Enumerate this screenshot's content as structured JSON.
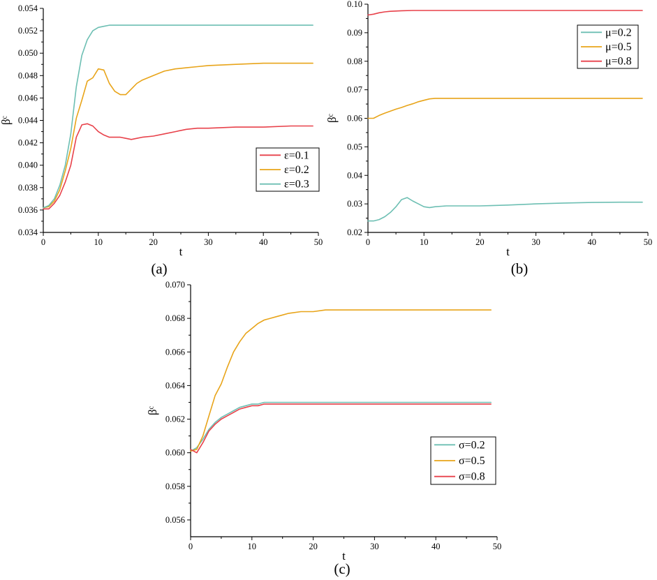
{
  "chart_data": [
    {
      "panel": "(a)",
      "type": "line",
      "xlabel": "t",
      "ylabel": "βᶜ",
      "xlim": [
        0,
        50
      ],
      "ylim": [
        0.034,
        0.054
      ],
      "xticks": [
        "0",
        "10",
        "20",
        "30",
        "40",
        "50"
      ],
      "yticks": [
        "0.034",
        "0.036",
        "0.038",
        "0.040",
        "0.042",
        "0.044",
        "0.046",
        "0.048",
        "0.050",
        "0.052",
        "0.054"
      ],
      "legend_position": "right",
      "series": [
        {
          "name": "ε=0.1",
          "color": "#e8414a",
          "x": [
            0,
            1,
            2,
            3,
            4,
            5,
            6,
            7,
            8,
            9,
            10,
            11,
            12,
            13,
            14,
            15,
            16,
            17,
            18,
            20,
            22,
            24,
            26,
            28,
            30,
            35,
            40,
            45,
            49
          ],
          "y": [
            0.0361,
            0.0361,
            0.0366,
            0.0373,
            0.0385,
            0.04,
            0.0425,
            0.0436,
            0.0437,
            0.0435,
            0.043,
            0.0427,
            0.0425,
            0.0425,
            0.0425,
            0.0424,
            0.0423,
            0.0424,
            0.0425,
            0.0426,
            0.0428,
            0.043,
            0.0432,
            0.0433,
            0.0433,
            0.0434,
            0.0434,
            0.0435,
            0.0435
          ]
        },
        {
          "name": "ε=0.2",
          "color": "#e8a419",
          "x": [
            0,
            1,
            2,
            3,
            4,
            5,
            6,
            7,
            8,
            9,
            10,
            11,
            12,
            13,
            14,
            15,
            16,
            17,
            18,
            20,
            22,
            24,
            26,
            28,
            30,
            35,
            40,
            45,
            49
          ],
          "y": [
            0.0362,
            0.0363,
            0.0368,
            0.0378,
            0.0395,
            0.0415,
            0.0442,
            0.0458,
            0.0475,
            0.0478,
            0.0486,
            0.0485,
            0.0473,
            0.0466,
            0.0463,
            0.0463,
            0.0468,
            0.0473,
            0.0476,
            0.048,
            0.0484,
            0.0486,
            0.0487,
            0.0488,
            0.0489,
            0.049,
            0.0491,
            0.0491,
            0.0491
          ]
        },
        {
          "name": "ε=0.3",
          "color": "#6dbfb3",
          "x": [
            0,
            1,
            2,
            3,
            4,
            5,
            6,
            7,
            8,
            9,
            10,
            11,
            12,
            13,
            14,
            15,
            16,
            18,
            20,
            25,
            30,
            35,
            40,
            45,
            49
          ],
          "y": [
            0.0362,
            0.0364,
            0.037,
            0.0382,
            0.04,
            0.0428,
            0.047,
            0.0498,
            0.0512,
            0.052,
            0.0523,
            0.0524,
            0.0525,
            0.0525,
            0.0525,
            0.0525,
            0.0525,
            0.0525,
            0.0525,
            0.0525,
            0.0525,
            0.0525,
            0.0525,
            0.0525,
            0.0525
          ]
        }
      ]
    },
    {
      "panel": "(b)",
      "type": "line",
      "xlabel": "t",
      "ylabel": "βᶜ",
      "xlim": [
        0,
        50
      ],
      "ylim": [
        0.02,
        0.1
      ],
      "xticks": [
        "0",
        "10",
        "20",
        "30",
        "40",
        "50"
      ],
      "yticks": [
        "0.02",
        "0.03",
        "0.04",
        "0.05",
        "0.06",
        "0.07",
        "0.08",
        "0.09",
        "0.10"
      ],
      "legend_position": "top-right",
      "series": [
        {
          "name": "μ=0.2",
          "color": "#6dbfb3",
          "x": [
            0,
            1,
            2,
            3,
            4,
            5,
            6,
            7,
            8,
            9,
            10,
            11,
            12,
            14,
            16,
            18,
            20,
            22,
            25,
            30,
            35,
            40,
            45,
            49
          ],
          "y": [
            0.024,
            0.024,
            0.0245,
            0.0255,
            0.027,
            0.029,
            0.0315,
            0.0322,
            0.031,
            0.03,
            0.029,
            0.0287,
            0.029,
            0.0293,
            0.0293,
            0.0293,
            0.0293,
            0.0294,
            0.0296,
            0.03,
            0.0303,
            0.0305,
            0.0306,
            0.0306
          ]
        },
        {
          "name": "μ=0.5",
          "color": "#e8a419",
          "x": [
            0,
            1,
            2,
            3,
            4,
            5,
            6,
            7,
            8,
            9,
            10,
            11,
            12,
            13,
            14,
            16,
            18,
            20,
            25,
            30,
            40,
            49
          ],
          "y": [
            0.06,
            0.06,
            0.061,
            0.0618,
            0.0625,
            0.0632,
            0.0638,
            0.0645,
            0.0651,
            0.0658,
            0.0663,
            0.0668,
            0.067,
            0.067,
            0.067,
            0.067,
            0.067,
            0.067,
            0.067,
            0.067,
            0.067,
            0.067
          ]
        },
        {
          "name": "μ=0.8",
          "color": "#e8414a",
          "x": [
            0,
            1,
            2,
            3,
            4,
            5,
            6,
            8,
            10,
            15,
            20,
            30,
            40,
            49
          ],
          "y": [
            0.0962,
            0.0965,
            0.097,
            0.0973,
            0.0975,
            0.0976,
            0.0977,
            0.0978,
            0.0978,
            0.0978,
            0.0978,
            0.0978,
            0.0978,
            0.0978
          ]
        }
      ]
    },
    {
      "panel": "(c)",
      "type": "line",
      "xlabel": "t",
      "ylabel": "βᶜ",
      "xlim": [
        0,
        50
      ],
      "ylim": [
        0.055,
        0.07
      ],
      "xticks": [
        "0",
        "10",
        "20",
        "30",
        "40",
        "50"
      ],
      "yticks": [
        "0.056",
        "0.058",
        "0.060",
        "0.062",
        "0.064",
        "0.066",
        "0.068",
        "0.070"
      ],
      "legend_position": "right",
      "series": [
        {
          "name": "σ=0.2",
          "color": "#6dbfb3",
          "x": [
            0,
            1,
            2,
            3,
            4,
            5,
            6,
            7,
            8,
            9,
            10,
            11,
            12,
            14,
            16,
            18,
            20,
            25,
            30,
            40,
            49
          ],
          "y": [
            0.0601,
            0.0603,
            0.0608,
            0.0614,
            0.0618,
            0.0621,
            0.0623,
            0.0625,
            0.0627,
            0.0628,
            0.0629,
            0.0629,
            0.063,
            0.063,
            0.063,
            0.063,
            0.063,
            0.063,
            0.063,
            0.063,
            0.063
          ]
        },
        {
          "name": "σ=0.5",
          "color": "#e8a419",
          "x": [
            0,
            1,
            2,
            3,
            4,
            5,
            6,
            7,
            8,
            9,
            10,
            11,
            12,
            13,
            14,
            15,
            16,
            18,
            20,
            22,
            24,
            26,
            30,
            35,
            40,
            45,
            49
          ],
          "y": [
            0.0601,
            0.0602,
            0.061,
            0.0622,
            0.0634,
            0.0641,
            0.0651,
            0.066,
            0.0666,
            0.0671,
            0.0674,
            0.0677,
            0.0679,
            0.068,
            0.0681,
            0.0682,
            0.0683,
            0.0684,
            0.0684,
            0.0685,
            0.0685,
            0.0685,
            0.0685,
            0.0685,
            0.0685,
            0.0685,
            0.0685
          ]
        },
        {
          "name": "σ=0.8",
          "color": "#e8414a",
          "x": [
            0,
            1,
            2,
            3,
            4,
            5,
            6,
            7,
            8,
            9,
            10,
            11,
            12,
            14,
            16,
            18,
            20,
            25,
            30,
            40,
            49
          ],
          "y": [
            0.0602,
            0.06,
            0.0606,
            0.0613,
            0.0617,
            0.062,
            0.0622,
            0.0624,
            0.0626,
            0.0627,
            0.0628,
            0.0628,
            0.0629,
            0.0629,
            0.0629,
            0.0629,
            0.0629,
            0.0629,
            0.0629,
            0.0629,
            0.0629
          ]
        }
      ]
    }
  ]
}
